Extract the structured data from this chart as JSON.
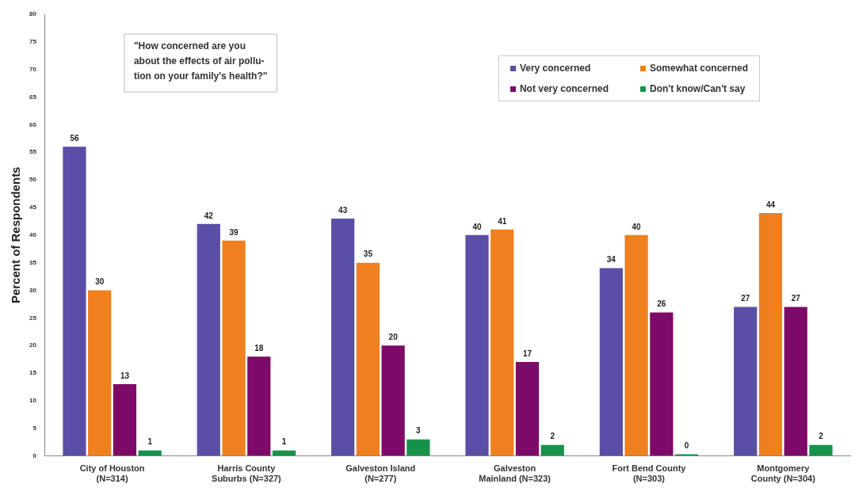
{
  "chart_data": {
    "type": "bar",
    "ylabel": "Percent of Respondents",
    "categories": [
      "City of Houston\n(N=314)",
      "Harris County\nSuburbs (N=327)",
      "Galveston Island\n(N=277)",
      "Galveston\nMainland (N=323)",
      "Fort Bend County\n(N=303)",
      "Montgomery\nCounty (N=304)"
    ],
    "series": [
      {
        "name": "Very concerned",
        "color": "#5a4ea6",
        "values": [
          56,
          42,
          43,
          40,
          34,
          27
        ]
      },
      {
        "name": "Somewhat concerned",
        "color": "#f07f1e",
        "values": [
          30,
          39,
          35,
          41,
          40,
          44
        ]
      },
      {
        "name": "Not very concerned",
        "color": "#7d0a66",
        "values": [
          13,
          18,
          20,
          17,
          26,
          27
        ]
      },
      {
        "name": "Don't know/Can't say",
        "color": "#17924a",
        "values": [
          1,
          1,
          3,
          2,
          0,
          2
        ]
      }
    ],
    "ylim": [
      0,
      80
    ],
    "yticks": [
      0,
      5,
      10,
      15,
      20,
      25,
      30,
      35,
      40,
      45,
      50,
      55,
      60,
      65,
      70,
      75,
      80
    ],
    "grid": false,
    "legend": "top right",
    "data_labels": true,
    "annotations": [
      "\"How concerned are you\nabout the effects of air pollu-\ntion on your family's health?\""
    ]
  }
}
